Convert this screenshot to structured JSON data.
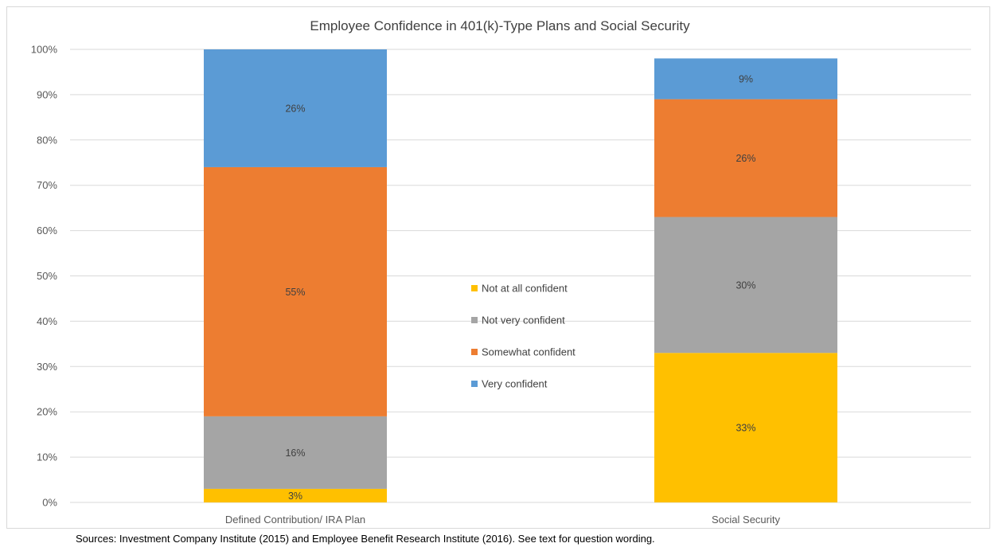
{
  "chart_data": {
    "type": "bar",
    "stacked": true,
    "title": "Employee Confidence in 401(k)-Type Plans and Social Security",
    "categories": [
      "Defined Contribution/ IRA Plan",
      "Social Security"
    ],
    "series": [
      {
        "name": "Not at all confident",
        "values": [
          3,
          33
        ],
        "color": "#FFC000"
      },
      {
        "name": "Not very confident",
        "values": [
          16,
          30
        ],
        "color": "#A5A5A5"
      },
      {
        "name": "Somewhat confident",
        "values": [
          55,
          26
        ],
        "color": "#ED7D31"
      },
      {
        "name": "Very confident",
        "values": [
          26,
          9
        ],
        "color": "#5B9BD5"
      }
    ],
    "ylim": [
      0,
      100
    ],
    "yticks": [
      "0%",
      "10%",
      "20%",
      "30%",
      "40%",
      "50%",
      "60%",
      "70%",
      "80%",
      "90%",
      "100%"
    ],
    "value_suffix": "%",
    "grid": true,
    "legend_position": "center"
  },
  "footnote": "Sources: Investment Company Institute (2015) and Employee Benefit Research Institute (2016). See text for question wording."
}
